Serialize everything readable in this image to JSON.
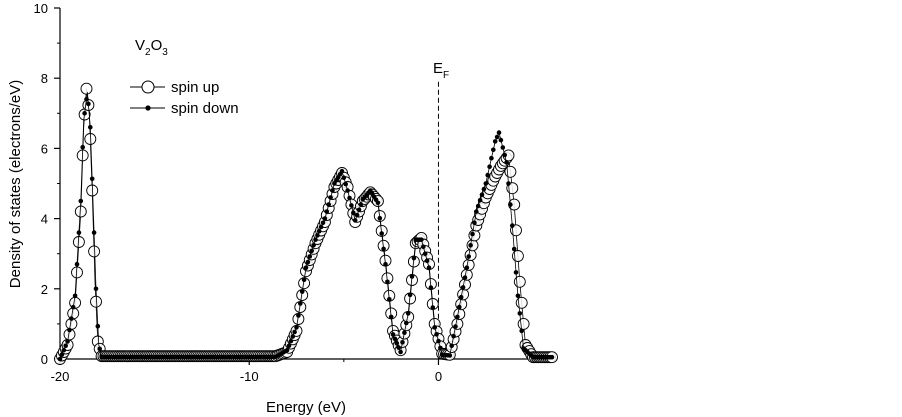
{
  "chart_data": {
    "type": "line",
    "ylabel": "Density of states (electrons/eV)",
    "xlabel": "Energy (eV)",
    "xlim": [
      -20,
      6
    ],
    "ylim": [
      0,
      10
    ],
    "x_ticks": [
      -20,
      -10,
      0
    ],
    "x_tick_labels": [
      "-20",
      "-10",
      "0"
    ],
    "y_ticks": [
      0,
      2,
      4,
      6,
      8,
      10
    ],
    "y_tick_labels": [
      "0",
      "2",
      "4",
      "6",
      "8",
      "10"
    ],
    "grid": false,
    "legend_position": "top-left",
    "annotations": {
      "formula": {
        "base": "V",
        "sub1": "2",
        "mid": "O",
        "sub2": "3"
      },
      "fermi": {
        "base": "E",
        "sub": "F",
        "x": 0,
        "y_top": 7.9
      }
    },
    "series": [
      {
        "name": "spin up",
        "marker": "open-circle",
        "points": [
          [
            -20.0,
            0.0
          ],
          [
            -19.6,
            0.4
          ],
          [
            -19.2,
            1.6
          ],
          [
            -18.9,
            4.2
          ],
          [
            -18.75,
            6.6
          ],
          [
            -18.6,
            7.7
          ],
          [
            -18.45,
            7.0
          ],
          [
            -18.3,
            4.8
          ],
          [
            -18.15,
            2.2
          ],
          [
            -18.0,
            0.5
          ],
          [
            -17.8,
            0.08
          ],
          [
            -15.0,
            0.08
          ],
          [
            -12.0,
            0.08
          ],
          [
            -8.6,
            0.08
          ],
          [
            -8.0,
            0.2
          ],
          [
            -7.5,
            0.8
          ],
          [
            -7.0,
            2.5
          ],
          [
            -6.5,
            3.3
          ],
          [
            -6.0,
            3.9
          ],
          [
            -5.5,
            4.9
          ],
          [
            -5.1,
            5.3
          ],
          [
            -4.8,
            4.9
          ],
          [
            -4.4,
            3.9
          ],
          [
            -4.0,
            4.5
          ],
          [
            -3.6,
            4.75
          ],
          [
            -3.2,
            4.5
          ],
          [
            -2.8,
            2.8
          ],
          [
            -2.4,
            0.8
          ],
          [
            -2.0,
            0.25
          ],
          [
            -1.6,
            1.2
          ],
          [
            -1.2,
            3.3
          ],
          [
            -0.9,
            3.45
          ],
          [
            -0.5,
            2.7
          ],
          [
            -0.2,
            1.0
          ],
          [
            0.2,
            0.15
          ],
          [
            0.6,
            0.12
          ],
          [
            1.0,
            1.0
          ],
          [
            1.5,
            2.4
          ],
          [
            2.0,
            3.8
          ],
          [
            2.5,
            4.6
          ],
          [
            3.0,
            5.2
          ],
          [
            3.3,
            5.5
          ],
          [
            3.7,
            5.8
          ],
          [
            4.0,
            4.4
          ],
          [
            4.3,
            2.2
          ],
          [
            4.6,
            0.4
          ],
          [
            5.0,
            0.05
          ],
          [
            6.0,
            0.05
          ]
        ]
      },
      {
        "name": "spin down",
        "marker": "filled-dot",
        "points": [
          [
            -20.0,
            0.0
          ],
          [
            -19.6,
            0.5
          ],
          [
            -19.2,
            1.8
          ],
          [
            -18.9,
            4.5
          ],
          [
            -18.75,
            6.8
          ],
          [
            -18.55,
            7.6
          ],
          [
            -18.4,
            6.6
          ],
          [
            -18.25,
            4.4
          ],
          [
            -18.1,
            2.0
          ],
          [
            -17.95,
            0.4
          ],
          [
            -17.8,
            0.06
          ],
          [
            -15.0,
            0.06
          ],
          [
            -12.0,
            0.06
          ],
          [
            -8.6,
            0.06
          ],
          [
            -8.0,
            0.25
          ],
          [
            -7.5,
            0.9
          ],
          [
            -7.0,
            2.6
          ],
          [
            -6.5,
            3.4
          ],
          [
            -6.0,
            4.0
          ],
          [
            -5.5,
            5.0
          ],
          [
            -5.1,
            5.35
          ],
          [
            -4.8,
            4.8
          ],
          [
            -4.4,
            3.95
          ],
          [
            -4.0,
            4.55
          ],
          [
            -3.6,
            4.8
          ],
          [
            -3.2,
            4.45
          ],
          [
            -2.8,
            2.7
          ],
          [
            -2.4,
            0.7
          ],
          [
            -2.0,
            0.2
          ],
          [
            -1.6,
            1.3
          ],
          [
            -1.2,
            3.4
          ],
          [
            -0.9,
            3.4
          ],
          [
            -0.5,
            2.6
          ],
          [
            -0.2,
            0.9
          ],
          [
            0.2,
            0.12
          ],
          [
            0.6,
            0.1
          ],
          [
            1.0,
            1.2
          ],
          [
            1.5,
            2.6
          ],
          [
            2.0,
            4.2
          ],
          [
            2.5,
            5.0
          ],
          [
            3.0,
            6.2
          ],
          [
            3.2,
            6.45
          ],
          [
            3.6,
            5.6
          ],
          [
            3.9,
            3.8
          ],
          [
            4.2,
            1.8
          ],
          [
            4.5,
            0.3
          ],
          [
            5.0,
            0.05
          ],
          [
            6.0,
            0.05
          ]
        ]
      }
    ]
  }
}
